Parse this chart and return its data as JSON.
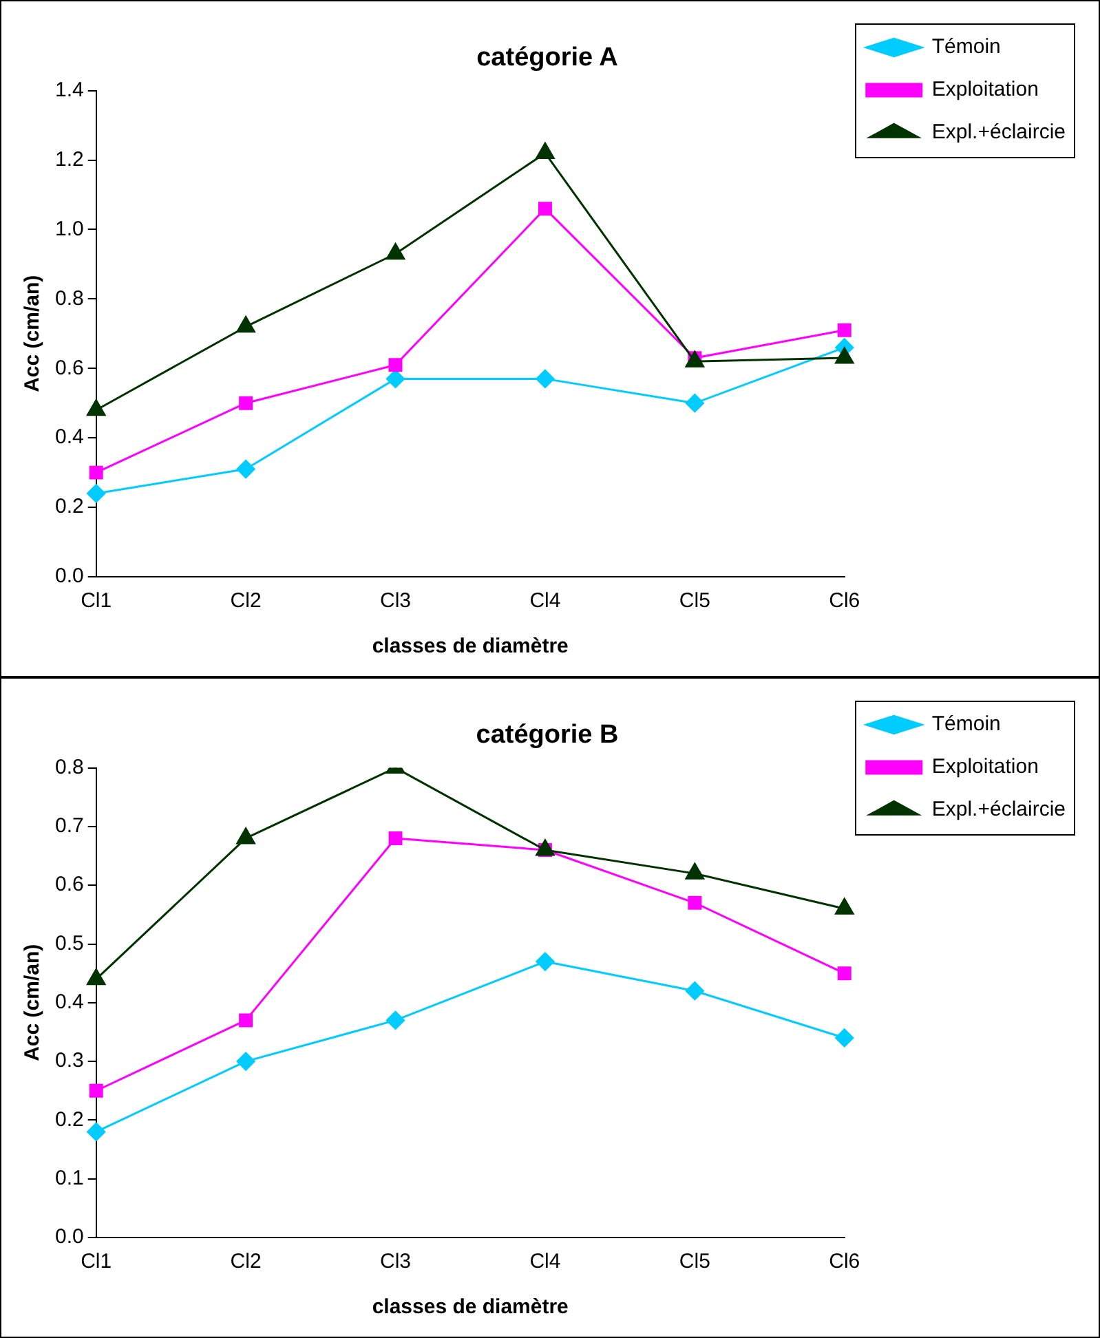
{
  "chart_data": [
    {
      "type": "line",
      "title": "catégorie A",
      "xlabel": "classes de diamètre",
      "ylabel": "Acc (cm/an)",
      "categories": [
        "Cl1",
        "Cl2",
        "Cl3",
        "Cl4",
        "Cl5",
        "Cl6"
      ],
      "series": [
        {
          "name": "Témoin",
          "color": "#00ccff",
          "marker": "diamond",
          "values": [
            0.24,
            0.31,
            0.57,
            0.57,
            0.5,
            0.66
          ]
        },
        {
          "name": "Exploitation",
          "color": "#ff00ff",
          "marker": "square",
          "values": [
            0.3,
            0.5,
            0.61,
            1.06,
            0.63,
            0.71
          ]
        },
        {
          "name": "Expl.+éclaircie",
          "color": "#003300",
          "marker": "triangle",
          "values": [
            0.48,
            0.72,
            0.93,
            1.22,
            0.62,
            0.63
          ]
        }
      ],
      "ylim": [
        0,
        1.4
      ],
      "yticks": [
        {
          "value": 0,
          "label": "0.0"
        },
        {
          "value": 0.2,
          "label": "0.2"
        },
        {
          "value": 0.4,
          "label": "0.4"
        },
        {
          "value": 0.6,
          "label": "0.6"
        },
        {
          "value": 0.8,
          "label": "0.8"
        },
        {
          "value": 1,
          "label": "1.0"
        },
        {
          "value": 1.2,
          "label": "1.2"
        },
        {
          "value": 1.4,
          "label": "1.4"
        }
      ],
      "grid": false,
      "legend": "top right",
      "line_style": "solid"
    },
    {
      "type": "line",
      "title": "catégorie B",
      "xlabel": "classes de diamètre",
      "ylabel": "Acc (cm/an)",
      "categories": [
        "Cl1",
        "Cl2",
        "Cl3",
        "Cl4",
        "Cl5",
        "Cl6"
      ],
      "series": [
        {
          "name": "Témoin",
          "color": "#00ccff",
          "marker": "diamond",
          "values": [
            0.18,
            0.3,
            0.37,
            0.47,
            0.42,
            0.34
          ]
        },
        {
          "name": "Exploitation",
          "color": "#ff00ff",
          "marker": "square",
          "values": [
            0.25,
            0.37,
            0.68,
            0.66,
            0.57,
            0.45
          ]
        },
        {
          "name": "Expl.+éclaircie",
          "color": "#003300",
          "marker": "triangle",
          "values": [
            0.44,
            0.68,
            0.8,
            0.66,
            0.62,
            0.56
          ]
        }
      ],
      "ylim": [
        0,
        0.8
      ],
      "yticks": [
        {
          "value": 0,
          "label": "0.0"
        },
        {
          "value": 0.1,
          "label": "0.1"
        },
        {
          "value": 0.2,
          "label": "0.2"
        },
        {
          "value": 0.3,
          "label": "0.3"
        },
        {
          "value": 0.4,
          "label": "0.4"
        },
        {
          "value": 0.5,
          "label": "0.5"
        },
        {
          "value": 0.6,
          "label": "0.6"
        },
        {
          "value": 0.7,
          "label": "0.7"
        },
        {
          "value": 0.8,
          "label": "0.8"
        }
      ],
      "grid": false,
      "legend": "top right",
      "line_style": "solid"
    }
  ]
}
